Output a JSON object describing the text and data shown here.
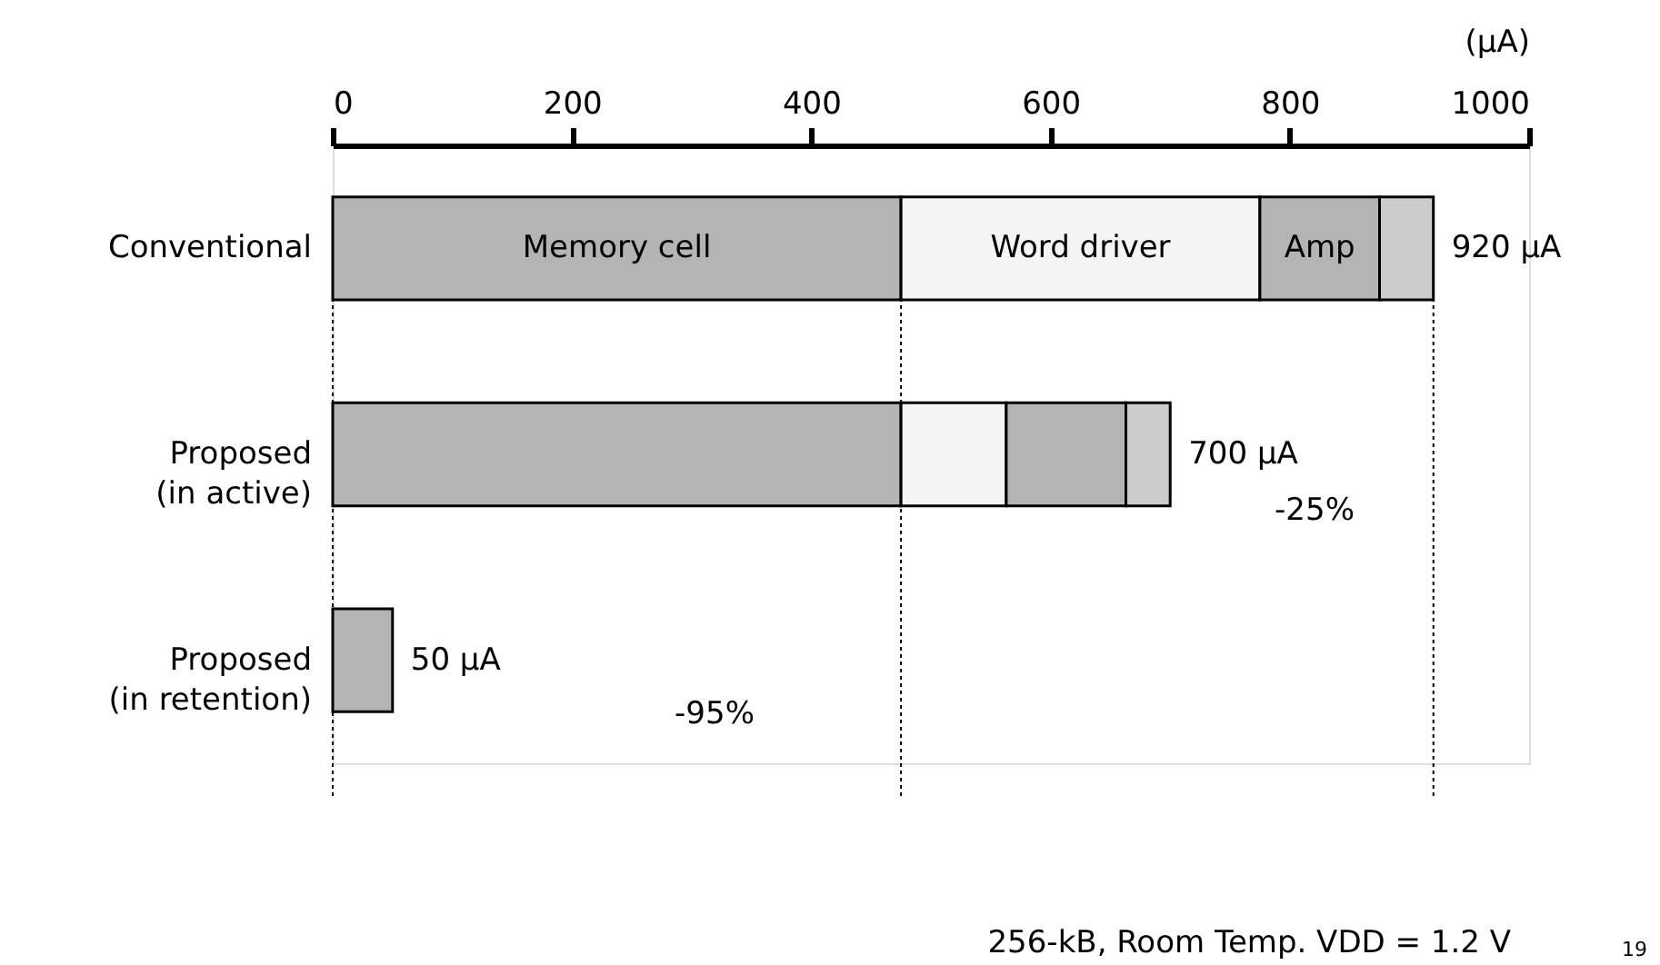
{
  "chart_data": {
    "type": "bar",
    "orientation": "horizontal",
    "stacked": true,
    "categories": [
      "Conventional",
      "Proposed\n(in active)",
      "Proposed\n(in retention)"
    ],
    "series": [
      {
        "name": "Memory cell",
        "color": "#b4b4b4",
        "values": [
          475,
          475,
          50
        ]
      },
      {
        "name": "Word driver",
        "color": "#f4f4f4",
        "values": [
          300,
          88,
          null
        ]
      },
      {
        "name": "Amp",
        "color": "#b4b4b4",
        "values": [
          100,
          100,
          null
        ]
      },
      {
        "color": "#cccccc",
        "values": [
          45,
          37,
          null
        ]
      }
    ],
    "xlabel": "(µA)",
    "xlim": [
      0,
      1000
    ],
    "xticks": [
      0,
      200,
      400,
      600,
      800,
      {
        "value": 1000,
        "label": "1000"
      }
    ],
    "totals": [
      "920 µA",
      "700 µA",
      "50 µA"
    ],
    "ref_lines": [
      {
        "axis": "x",
        "value": 0,
        "line_style": "dotted",
        "color": "#000000"
      },
      {
        "axis": "x",
        "value": 475,
        "line_style": "dotted",
        "color": "#000000"
      },
      {
        "axis": "x",
        "value": 920,
        "line_style": "dotted",
        "color": "#000000"
      }
    ],
    "annotations": [
      "-25%",
      "-95%",
      "256-kB, Room Temp. VDD = 1.2 V",
      "19"
    ],
    "grid": false
  }
}
